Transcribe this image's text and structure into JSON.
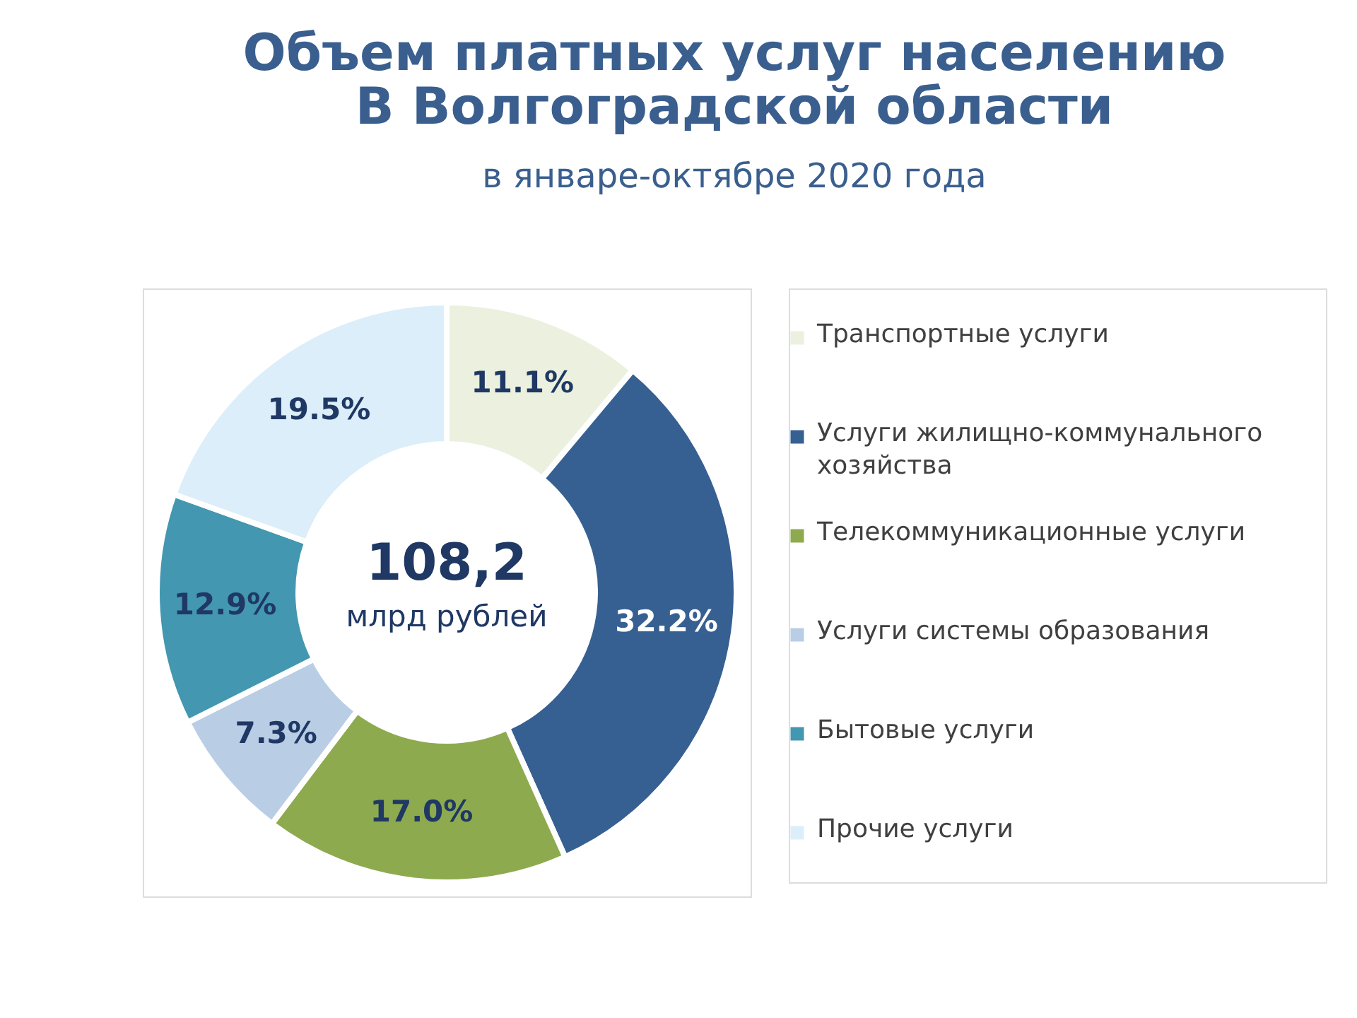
{
  "chart_data": {
    "type": "donut",
    "title": [
      "Объем платных услуг населению",
      "В Волгоградской области"
    ],
    "subtitle": "в январе-октябре 2020 года",
    "categories": [
      "Транспортные услуги",
      "Услуги жилищно-коммунального хозяйства",
      "Телекоммуникационные услуги",
      "Услуги системы образования",
      "Бытовые услуги",
      "Прочие услуги"
    ],
    "values": [
      11.1,
      32.2,
      17.0,
      7.3,
      12.9,
      19.5
    ],
    "colors": [
      "#ebf1de",
      "#376092",
      "#8eaa4f",
      "#b9cde5",
      "#4397b0",
      "#dbeef9"
    ],
    "annotations": [
      "108,2",
      "млрд рублей"
    ],
    "value_labels": [
      "11.1%",
      "32.2%",
      "17.0%",
      "7.3%",
      "12.9%",
      "19.5%"
    ],
    "legend": "right"
  }
}
